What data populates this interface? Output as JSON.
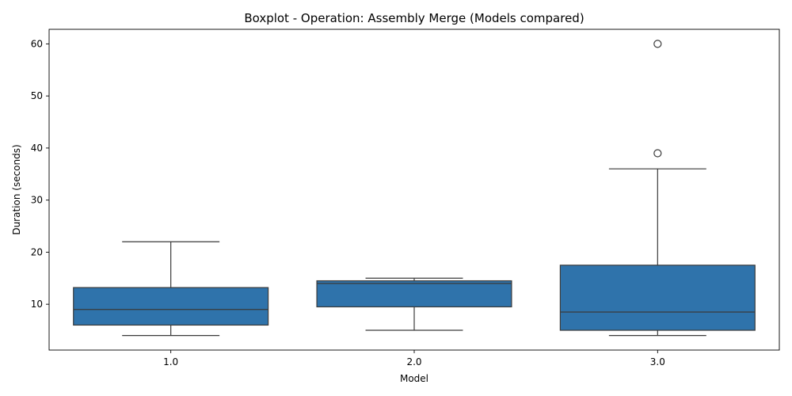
{
  "chart_data": {
    "type": "boxplot",
    "title": "Boxplot - Operation: Assembly Merge (Models compared)",
    "xlabel": "Model",
    "ylabel": "Duration (seconds)",
    "categories": [
      "1.0",
      "2.0",
      "3.0"
    ],
    "yticks": [
      10,
      20,
      30,
      40,
      50,
      60
    ],
    "ylim": [
      1.2,
      62.8
    ],
    "box_color": "#2f73ab",
    "line_color": "#3a3a3a",
    "boxes": [
      {
        "category": "1.0",
        "whisker_low": 4,
        "q1": 6,
        "median": 9,
        "q3": 13.2,
        "whisker_high": 22,
        "outliers": []
      },
      {
        "category": "2.0",
        "whisker_low": 5,
        "q1": 9.5,
        "median": 14,
        "q3": 14.5,
        "whisker_high": 15,
        "outliers": []
      },
      {
        "category": "3.0",
        "whisker_low": 4,
        "q1": 5,
        "median": 8.5,
        "q3": 17.5,
        "whisker_high": 36,
        "outliers": [
          39,
          60
        ]
      }
    ]
  }
}
